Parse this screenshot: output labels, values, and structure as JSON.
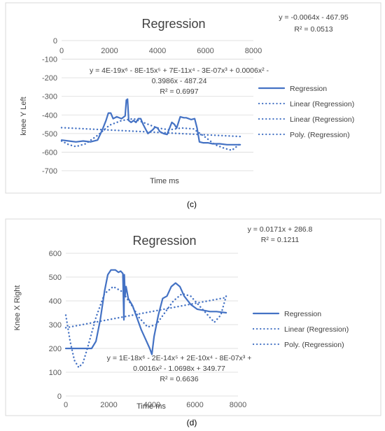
{
  "chart_data": [
    {
      "type": "line",
      "panel_label": "(c)",
      "title": "Regression",
      "xlabel": "Time ms",
      "ylabel": "knee Y Left",
      "xlim": [
        0,
        8000
      ],
      "ylim": [
        -700,
        0
      ],
      "x_ticks": [
        "0",
        "2000",
        "4000",
        "6000",
        "8000"
      ],
      "y_ticks": [
        "0",
        "-100",
        "-200",
        "-300",
        "-400",
        "-500",
        "-600",
        "-700"
      ],
      "grid": "horizontal",
      "legend": [
        "Regression",
        "Linear (Regression)",
        "Linear (Regression)",
        "Poly. (Regression)"
      ],
      "legend_position": "right",
      "linear_eq": "y = -0.0064x - 467.95",
      "linear_r2": "R² = 0.0513",
      "poly_eq_line1": "y = 4E-19x⁶ - 8E-15x⁵ + 7E-11x⁴ - 3E-07x³ + 0.0006x² -",
      "poly_eq_line2": "0.3986x - 487.24",
      "poly_r2": "R² = 0.6997",
      "series": [
        {
          "name": "Regression",
          "style": "solid",
          "x": [
            0,
            300,
            600,
            900,
            1200,
            1500,
            1700,
            1850,
            1950,
            2050,
            2150,
            2300,
            2500,
            2650,
            2700,
            2750,
            2800,
            2900,
            3000,
            3100,
            3200,
            3300,
            3400,
            3600,
            3800,
            3900,
            4000,
            4100,
            4250,
            4400,
            4600,
            4700,
            4800,
            4950,
            5100,
            5200,
            5400,
            5550,
            5650,
            5750,
            5900,
            6100,
            6300,
            6600,
            6900,
            7200,
            7450
          ],
          "y": [
            -535,
            -540,
            -545,
            -540,
            -545,
            -535,
            -480,
            -430,
            -390,
            -390,
            -420,
            -410,
            -420,
            -405,
            -320,
            -315,
            -430,
            -440,
            -430,
            -440,
            -420,
            -420,
            -450,
            -500,
            -480,
            -465,
            -470,
            -490,
            -500,
            -505,
            -440,
            -450,
            -470,
            -410,
            -415,
            -415,
            -425,
            -420,
            -470,
            -545,
            -550,
            -550,
            -555,
            -555,
            -560,
            -560,
            -560
          ]
        },
        {
          "name": "Linear (Regression)",
          "style": "dotted",
          "x": [
            0,
            7450
          ],
          "y": [
            -468,
            -516
          ]
        },
        {
          "name": "Poly. (Regression)",
          "style": "dotted",
          "x": [
            0,
            300,
            600,
            1000,
            1500,
            2000,
            2500,
            3000,
            3500,
            4000,
            4500,
            5000,
            5500,
            6000,
            6400,
            6800,
            7100,
            7450
          ],
          "y": [
            -540,
            -560,
            -570,
            -555,
            -510,
            -455,
            -430,
            -420,
            -445,
            -470,
            -480,
            -470,
            -475,
            -520,
            -560,
            -580,
            -590,
            -555
          ]
        }
      ]
    },
    {
      "type": "line",
      "panel_label": "(d)",
      "title": "Regression",
      "xlabel": "Time ms",
      "ylabel": "Knee X Right",
      "xlim": [
        0,
        8000
      ],
      "ylim": [
        0,
        600
      ],
      "x_ticks": [
        "0",
        "2000",
        "4000",
        "6000",
        "8000"
      ],
      "y_ticks": [
        "600",
        "500",
        "400",
        "300",
        "200",
        "100",
        "0"
      ],
      "grid": "horizontal",
      "legend": [
        "Regression",
        "Linear (Regression)",
        "Poly. (Regression)"
      ],
      "legend_position": "right",
      "linear_eq": "y = 0.0171x + 286.8",
      "linear_r2": "R² = 0.1211",
      "poly_eq_line1": "y = 1E-18x⁶ - 2E-14x⁵ + 2E-10x⁴ - 8E-07x³ +",
      "poly_eq_line2": "0.0016x² - 1.0698x + 349.77",
      "poly_r2": "R² = 0.6636",
      "series": [
        {
          "name": "Regression",
          "style": "solid",
          "x": [
            0,
            400,
            800,
            1200,
            1400,
            1600,
            1800,
            1950,
            2100,
            2300,
            2450,
            2550,
            2650,
            2700,
            2720,
            2750,
            2800,
            2900,
            3100,
            3300,
            3500,
            3700,
            3900,
            4000,
            4100,
            4300,
            4500,
            4700,
            4900,
            5100,
            5300,
            5500,
            5800,
            6100,
            6400,
            6700,
            7000,
            7450
          ],
          "y": [
            200,
            200,
            200,
            200,
            230,
            320,
            440,
            510,
            530,
            530,
            520,
            525,
            515,
            320,
            510,
            420,
            460,
            410,
            380,
            330,
            280,
            240,
            200,
            175,
            250,
            340,
            410,
            420,
            460,
            475,
            460,
            420,
            385,
            365,
            360,
            355,
            355,
            350
          ]
        },
        {
          "name": "Linear (Regression)",
          "style": "dotted",
          "x": [
            0,
            7450
          ],
          "y": [
            287,
            414
          ]
        },
        {
          "name": "Poly. (Regression)",
          "style": "dotted",
          "x": [
            0,
            200,
            400,
            600,
            800,
            1000,
            1400,
            1800,
            2200,
            2600,
            3000,
            3400,
            3800,
            4200,
            4600,
            5000,
            5400,
            5800,
            6200,
            6600,
            6900,
            7200,
            7450
          ],
          "y": [
            340,
            230,
            150,
            120,
            140,
            200,
            330,
            430,
            460,
            440,
            390,
            330,
            290,
            300,
            350,
            400,
            430,
            420,
            380,
            340,
            310,
            340,
            420
          ]
        }
      ]
    }
  ]
}
